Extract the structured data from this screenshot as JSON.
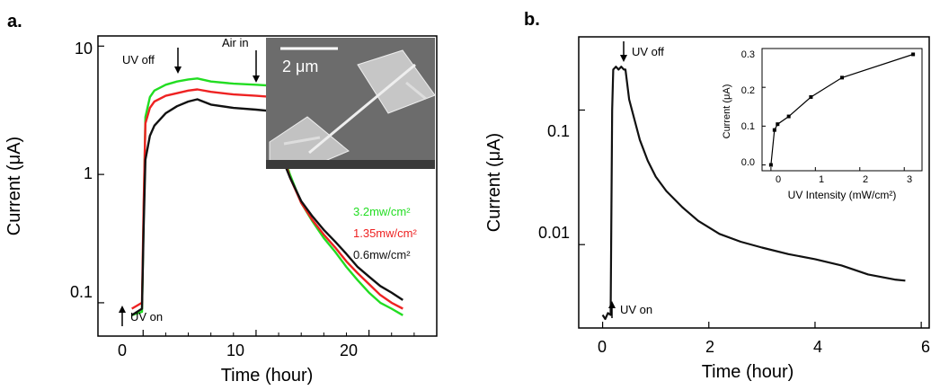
{
  "chart_data": [
    {
      "panel": "a.",
      "type": "line",
      "xlabel": "Time (hour)",
      "ylabel": "Current (μA)",
      "xlim": [
        -4,
        26
      ],
      "ylim": [
        0.055,
        12
      ],
      "yscale": "log",
      "xticks": [
        "0",
        "10",
        "20"
      ],
      "yticks": [
        "0.1",
        "1",
        "10"
      ],
      "annotations": [
        "UV off",
        "Air in",
        "UV on"
      ],
      "inset": {
        "type": "image",
        "scalebar": "2 μm"
      },
      "series": [
        {
          "name": "3.2mw/cm²",
          "color": "#22dd22",
          "x": [
            -1,
            -0.1,
            0.05,
            0.2,
            0.6,
            1,
            2,
            3,
            4,
            4.8,
            6,
            8,
            10,
            11.6,
            11.8,
            12,
            12.3,
            12.7,
            13,
            14,
            15,
            16,
            17,
            18,
            19,
            20,
            21,
            22,
            23
          ],
          "y": [
            0.08,
            0.085,
            0.5,
            2.8,
            4.0,
            4.5,
            5.0,
            5.3,
            5.5,
            5.6,
            5.3,
            5.1,
            5.0,
            4.9,
            3.0,
            2.2,
            1.6,
            1.2,
            1.0,
            0.6,
            0.43,
            0.32,
            0.25,
            0.19,
            0.15,
            0.12,
            0.1,
            0.09,
            0.08
          ]
        },
        {
          "name": "1.35mw/cm²",
          "color": "#ee2222",
          "x": [
            -1,
            -0.1,
            0.05,
            0.2,
            0.6,
            1,
            2,
            3,
            4,
            4.8,
            6,
            8,
            10,
            11.6,
            11.8,
            12,
            12.3,
            12.7,
            13,
            14,
            15,
            16,
            17,
            18,
            19,
            20,
            21,
            22,
            23
          ],
          "y": [
            0.09,
            0.1,
            0.6,
            2.5,
            3.3,
            3.7,
            4.1,
            4.3,
            4.5,
            4.6,
            4.4,
            4.2,
            4.1,
            4.0,
            2.7,
            2.0,
            1.5,
            1.15,
            0.95,
            0.6,
            0.44,
            0.34,
            0.27,
            0.21,
            0.17,
            0.14,
            0.115,
            0.1,
            0.09
          ]
        },
        {
          "name": "0.6mw/cm²",
          "color": "#111111",
          "x": [
            -1,
            -0.1,
            0.05,
            0.2,
            0.6,
            1,
            2,
            3,
            4,
            4.8,
            6,
            8,
            10,
            11.6,
            11.8,
            12,
            12.3,
            12.7,
            13,
            14,
            15,
            16,
            17,
            18,
            19,
            20,
            21,
            22,
            23
          ],
          "y": [
            0.08,
            0.09,
            0.4,
            1.3,
            2.0,
            2.4,
            3.0,
            3.4,
            3.7,
            3.85,
            3.5,
            3.3,
            3.2,
            3.1,
            2.3,
            1.8,
            1.4,
            1.1,
            0.95,
            0.62,
            0.47,
            0.37,
            0.3,
            0.24,
            0.19,
            0.16,
            0.135,
            0.12,
            0.105
          ]
        }
      ]
    },
    {
      "panel": "b.",
      "type": "line",
      "xlabel": "Time (hour)",
      "ylabel": "Current (μA)",
      "xlim": [
        -0.45,
        6.15
      ],
      "ylim": [
        0.0024,
        0.35
      ],
      "yscale": "log",
      "xticks": [
        "0",
        "2",
        "4",
        "6"
      ],
      "yticks": [
        "0.01",
        "0.1"
      ],
      "annotations": [
        "UV off",
        "UV on"
      ],
      "series": [
        {
          "color": "#111111",
          "x": [
            0.0,
            0.05,
            0.1,
            0.15,
            0.18,
            0.2,
            0.25,
            0.3,
            0.35,
            0.4,
            0.43,
            0.5,
            0.6,
            0.7,
            0.85,
            1.0,
            1.2,
            1.5,
            1.8,
            2.2,
            2.6,
            3.0,
            3.5,
            4.0,
            4.5,
            5.0,
            5.5,
            5.7
          ],
          "y": [
            0.003,
            0.0028,
            0.0031,
            0.003,
            0.1,
            0.2,
            0.21,
            0.2,
            0.21,
            0.2,
            0.2,
            0.12,
            0.085,
            0.06,
            0.042,
            0.032,
            0.025,
            0.019,
            0.015,
            0.012,
            0.0105,
            0.0095,
            0.0085,
            0.0078,
            0.007,
            0.006,
            0.0055,
            0.0054
          ]
        }
      ],
      "inset": {
        "type": "line",
        "xlabel": "UV Intensity (mW/cm²)",
        "ylabel": "Current (μA)",
        "xlim": [
          -0.2,
          3.4
        ],
        "ylim": [
          -0.015,
          0.3
        ],
        "xticks": [
          "0",
          "1",
          "2",
          "3"
        ],
        "yticks": [
          "0.0",
          "0.1",
          "0.2",
          "0.3"
        ],
        "x": [
          0.0,
          0.08,
          0.15,
          0.4,
          0.9,
          1.6,
          3.2
        ],
        "y": [
          0.0,
          0.09,
          0.105,
          0.125,
          0.175,
          0.225,
          0.285
        ]
      }
    }
  ]
}
